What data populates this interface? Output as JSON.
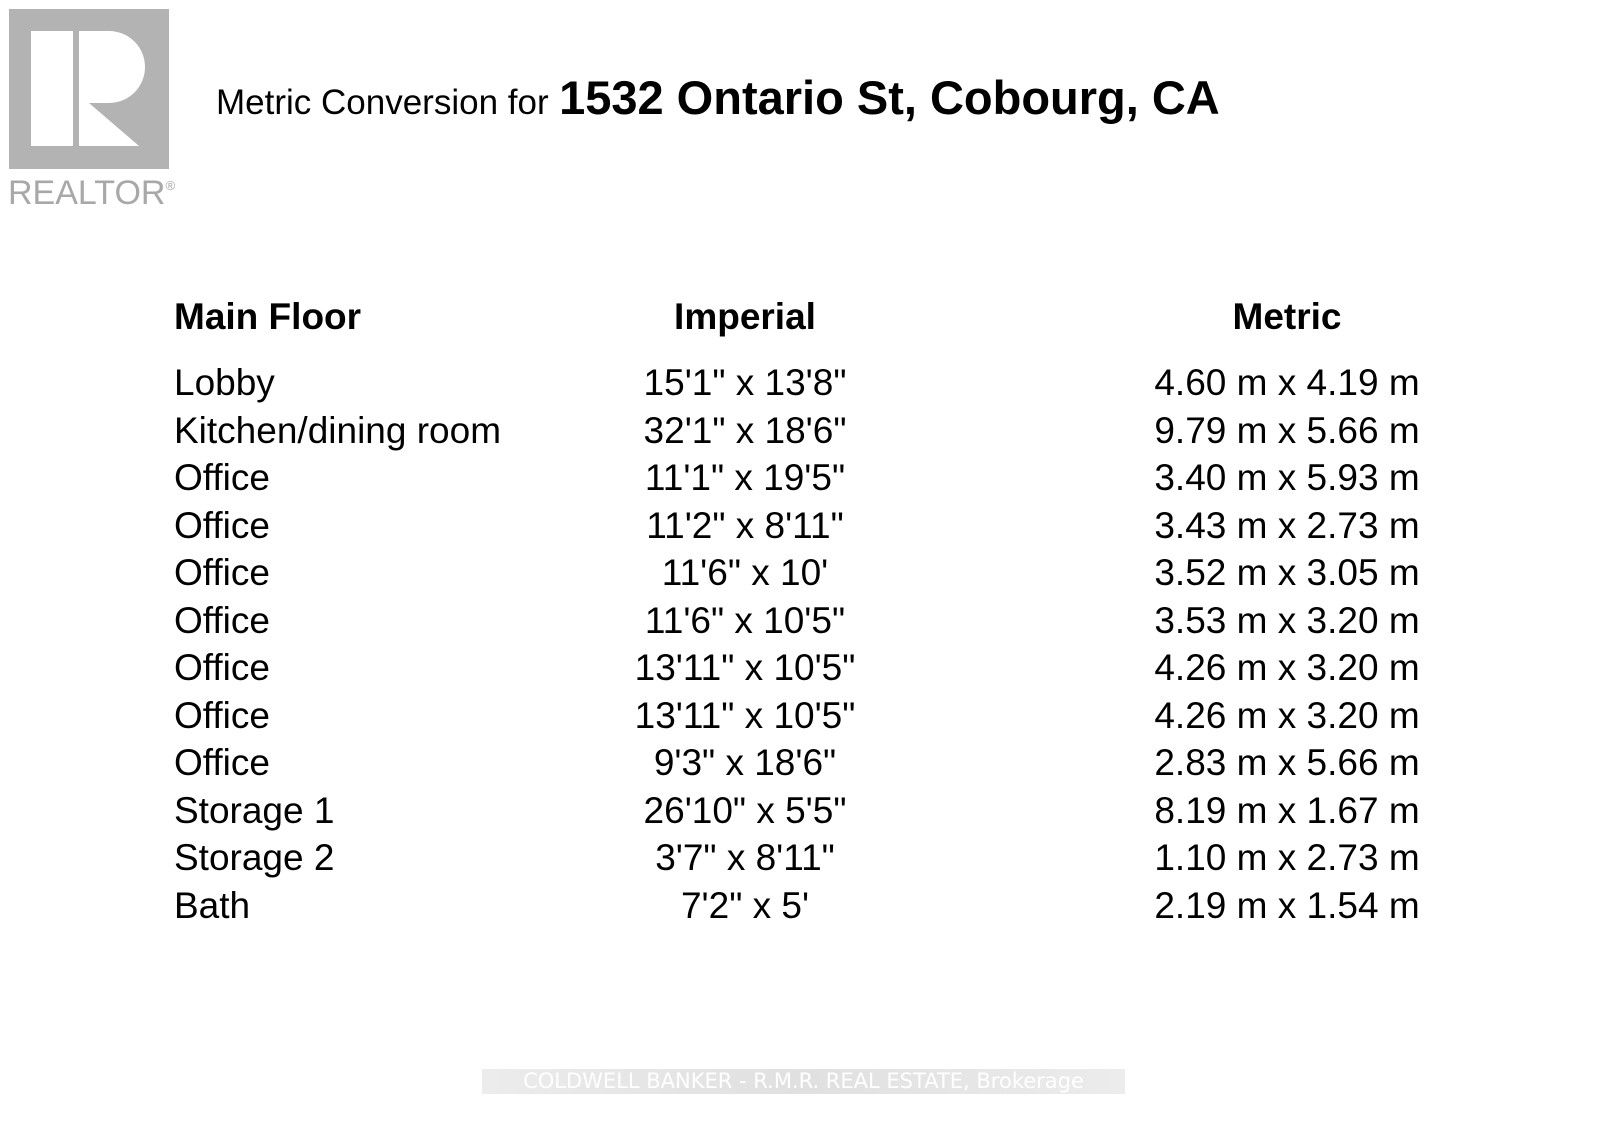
{
  "logo": {
    "text": "REALTOR",
    "mark": "®",
    "color": "#b3b3b3"
  },
  "title": {
    "prefix": "Metric Conversion for",
    "address": "1532 Ontario St, Cobourg, CA"
  },
  "table": {
    "headers": [
      "Main Floor",
      "Imperial",
      "Metric"
    ],
    "rows": [
      {
        "room": "Lobby",
        "imperial": "15'1\" x 13'8\"",
        "metric": "4.60 m x 4.19 m"
      },
      {
        "room": "Kitchen/dining room",
        "imperial": "32'1\" x 18'6\"",
        "metric": "9.79 m x 5.66 m"
      },
      {
        "room": "Office",
        "imperial": "11'1\" x 19'5\"",
        "metric": "3.40 m x 5.93 m"
      },
      {
        "room": "Office",
        "imperial": "11'2\" x 8'11\"",
        "metric": "3.43 m x 2.73 m"
      },
      {
        "room": "Office",
        "imperial": "11'6\" x 10'",
        "metric": "3.52 m x 3.05 m"
      },
      {
        "room": "Office",
        "imperial": "11'6\" x 10'5\"",
        "metric": "3.53 m x 3.20 m"
      },
      {
        "room": "Office",
        "imperial": "13'11\" x 10'5\"",
        "metric": "4.26 m x 3.20 m"
      },
      {
        "room": "Office",
        "imperial": "13'11\" x 10'5\"",
        "metric": "4.26 m x 3.20 m"
      },
      {
        "room": "Office",
        "imperial": "9'3\" x 18'6\"",
        "metric": "2.83 m x 5.66 m"
      },
      {
        "room": "Storage 1",
        "imperial": "26'10\" x 5'5\"",
        "metric": "8.19 m x 1.67 m"
      },
      {
        "room": "Storage 2",
        "imperial": "3'7\" x 8'11\"",
        "metric": "1.10 m x 2.73 m"
      },
      {
        "room": "Bath",
        "imperial": "7'2\" x 5'",
        "metric": "2.19 m x 1.54 m"
      }
    ]
  },
  "watermark": "COLDWELL BANKER - R.M.R. REAL ESTATE, Brokerage"
}
